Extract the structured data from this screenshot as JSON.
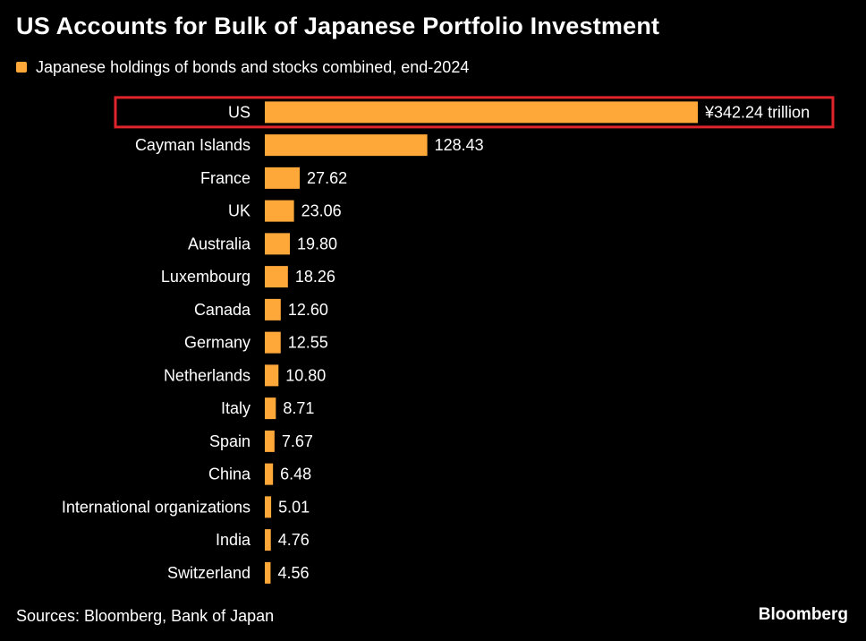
{
  "title": "US Accounts for Bulk of Japanese Portfolio Investment",
  "legend": {
    "label": "Japanese holdings of bonds and stocks combined, end-2024"
  },
  "colors": {
    "bar": "#FFA83A",
    "highlight": "#E0242B",
    "background": "#000000",
    "text": "#FFFFFF"
  },
  "source": "Sources: Bloomberg, Bank of Japan",
  "brand": "Bloomberg",
  "chart_data": {
    "type": "bar",
    "orientation": "horizontal",
    "title": "US Accounts for Bulk of Japanese Portfolio Investment",
    "categories": [
      "US",
      "Cayman Islands",
      "France",
      "UK",
      "Australia",
      "Luxembourg",
      "Canada",
      "Germany",
      "Netherlands",
      "Italy",
      "Spain",
      "China",
      "International organizations",
      "India",
      "Switzerland"
    ],
    "values": [
      342.24,
      128.43,
      27.62,
      23.06,
      19.8,
      18.26,
      12.6,
      12.55,
      10.8,
      8.71,
      7.67,
      6.48,
      5.01,
      4.76,
      4.56
    ],
    "value_labels": [
      "¥342.24 trillion",
      "128.43",
      "27.62",
      "23.06",
      "19.80",
      "18.26",
      "12.60",
      "12.55",
      "10.80",
      "8.71",
      "7.67",
      "6.48",
      "5.01",
      "4.76",
      "4.56"
    ],
    "series": [
      {
        "values": [
          342.24,
          128.43,
          27.62,
          23.06,
          19.8,
          18.26,
          12.6,
          12.55,
          10.8,
          8.71,
          7.67,
          6.48,
          5.01,
          4.76,
          4.56
        ]
      }
    ],
    "highlighted_category": "US",
    "xlim": [
      0,
      342.24
    ],
    "grid": false,
    "legend_position": "top-left"
  }
}
